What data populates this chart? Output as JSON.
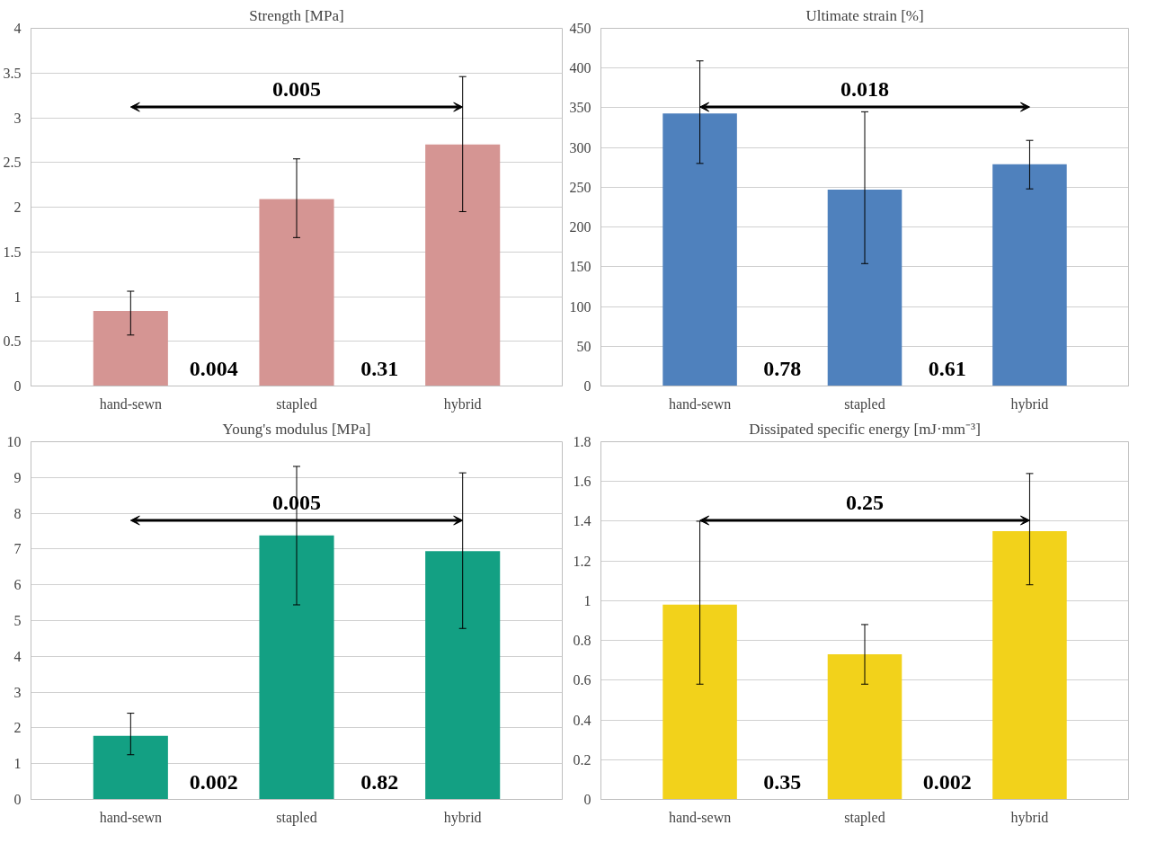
{
  "chart_data": [
    {
      "type": "bar",
      "title": "Strength [MPa]",
      "categories": [
        "hand-sewn",
        "stapled",
        "hybrid"
      ],
      "values": [
        0.84,
        2.09,
        2.7
      ],
      "color": "#d59593",
      "errors": [
        [
          0.57,
          1.06
        ],
        [
          1.66,
          2.54
        ],
        [
          1.95,
          3.46
        ]
      ],
      "ylim": [
        0,
        4
      ],
      "yticks": [
        0,
        0.5,
        1,
        1.5,
        2,
        2.5,
        3,
        3.5,
        4
      ],
      "grid": "y",
      "annotations": [
        {
          "text": "0.005"
        },
        {
          "text": "0.004"
        },
        {
          "text": "0.31"
        }
      ]
    },
    {
      "type": "bar",
      "title": "Ultimate strain [%]",
      "categories": [
        "hand-sewn",
        "stapled",
        "hybrid"
      ],
      "values": [
        343,
        247,
        279
      ],
      "color": "#4f81bd",
      "errors": [
        [
          280,
          409
        ],
        [
          154,
          345
        ],
        [
          248,
          309
        ]
      ],
      "ylim": [
        0,
        450
      ],
      "yticks": [
        0,
        50,
        100,
        150,
        200,
        250,
        300,
        350,
        400,
        450
      ],
      "grid": "y",
      "annotations": [
        {
          "text": "0.018"
        },
        {
          "text": "0.78"
        },
        {
          "text": "0.61"
        }
      ]
    },
    {
      "type": "bar",
      "title": "Young's modulus [MPa]",
      "categories": [
        "hand-sewn",
        "stapled",
        "hybrid"
      ],
      "values": [
        1.78,
        7.38,
        6.94
      ],
      "color": "#13a083",
      "errors": [
        [
          1.25,
          2.41
        ],
        [
          5.44,
          9.31
        ],
        [
          4.78,
          9.13
        ]
      ],
      "ylim": [
        0,
        10
      ],
      "yticks": [
        0,
        1,
        2,
        3,
        4,
        5,
        6,
        7,
        8,
        9,
        10
      ],
      "grid": "y",
      "annotations": [
        {
          "text": "0.005"
        },
        {
          "text": "0.002"
        },
        {
          "text": "0.82"
        }
      ]
    },
    {
      "type": "bar",
      "title": "Dissipated specific energy [mJ·mm⁻³]",
      "categories": [
        "hand-sewn",
        "stapled",
        "hybrid"
      ],
      "values": [
        0.98,
        0.73,
        1.35
      ],
      "color": "#f2d21b",
      "errors": [
        [
          0.58,
          1.4
        ],
        [
          0.58,
          0.88
        ],
        [
          1.08,
          1.64
        ]
      ],
      "ylim": [
        0,
        1.8
      ],
      "yticks": [
        0,
        0.2,
        0.4,
        0.6,
        0.8,
        1,
        1.2,
        1.4,
        1.6,
        1.8
      ],
      "grid": "y",
      "annotations": [
        {
          "text": "0.25"
        },
        {
          "text": "0.35"
        },
        {
          "text": "0.002"
        }
      ]
    }
  ]
}
